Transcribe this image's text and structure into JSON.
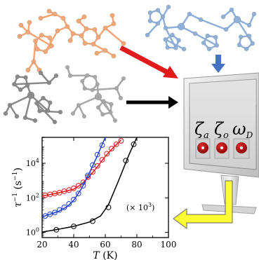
{
  "monitor": {
    "labels": [
      {
        "text": "ζ",
        "sub": "a"
      },
      {
        "text": "ζ",
        "sub": "o"
      },
      {
        "text": "ω",
        "sub": "D"
      }
    ]
  },
  "molecules": [
    {
      "name": "orange-complex",
      "color": "#f0a878"
    },
    {
      "name": "blue-complex",
      "color": "#8fb0d8"
    },
    {
      "name": "gray-complex-1",
      "color": "#8a8a8a"
    },
    {
      "name": "gray-complex-2",
      "color": "#a8a8a8"
    }
  ],
  "arrows": {
    "red": "#e31a1c",
    "blue": "#4472c4",
    "black": "#000000",
    "yellow": "#ffff33"
  },
  "chart_data": {
    "type": "line",
    "xlabel_var": "T",
    "xlabel_unit": "(K)",
    "ylabel_var": "τ",
    "ylabel_sup": "−1",
    "ylabel_unit": "(s",
    "ylabel_unit_sup": "−1",
    "ylabel_close": ")",
    "x_ticks": [
      "20",
      "40",
      "60",
      "80",
      "100"
    ],
    "x_tick_values": [
      20,
      40,
      60,
      80,
      100
    ],
    "y_ticks": [
      {
        "base": "10",
        "exp": "0",
        "value": 0
      },
      {
        "base": "10",
        "exp": "2",
        "value": 2
      },
      {
        "base": "10",
        "exp": "4",
        "value": 4
      }
    ],
    "xlim": [
      20,
      100
    ],
    "ylim_log10": [
      -0.3,
      5.5
    ],
    "annotation": {
      "text": "(× 10",
      "sup": "3",
      "close": ")"
    },
    "series": [
      {
        "color": "#e31a1c",
        "points": [
          [
            22,
            2.15
          ],
          [
            25,
            2.2
          ],
          [
            28,
            2.25
          ],
          [
            31,
            2.3
          ],
          [
            34,
            2.38
          ],
          [
            37,
            2.45
          ],
          [
            40,
            2.55
          ],
          [
            43,
            2.7
          ],
          [
            46,
            2.9
          ],
          [
            49,
            3.2
          ],
          [
            52,
            3.5
          ],
          [
            55,
            3.85
          ],
          [
            58,
            4.2
          ],
          [
            61,
            4.55
          ],
          [
            64,
            4.85
          ],
          [
            67,
            5.1
          ],
          [
            70,
            5.3
          ]
        ],
        "fit": [
          [
            20,
            2.1
          ],
          [
            30,
            2.28
          ],
          [
            40,
            2.5
          ],
          [
            45,
            2.8
          ],
          [
            50,
            3.25
          ],
          [
            55,
            3.8
          ],
          [
            60,
            4.4
          ],
          [
            65,
            4.9
          ],
          [
            70,
            5.35
          ]
        ]
      },
      {
        "color": "#1f3fd1",
        "points": [
          [
            22,
            0.95
          ],
          [
            25,
            1.05
          ],
          [
            28,
            1.15
          ],
          [
            31,
            1.3
          ],
          [
            34,
            1.45
          ],
          [
            37,
            1.65
          ],
          [
            40,
            1.9
          ],
          [
            43,
            2.25
          ],
          [
            46,
            2.7
          ],
          [
            49,
            3.3
          ],
          [
            52,
            3.9
          ],
          [
            55,
            4.5
          ],
          [
            58,
            5.05
          ]
        ],
        "fit": [
          [
            20,
            0.9
          ],
          [
            30,
            1.2
          ],
          [
            36,
            1.5
          ],
          [
            40,
            1.85
          ],
          [
            45,
            2.55
          ],
          [
            50,
            3.45
          ],
          [
            55,
            4.45
          ],
          [
            60,
            5.5
          ]
        ]
      },
      {
        "color": "#000000",
        "points": [
          [
            29,
            0.15
          ],
          [
            40,
            0.35
          ],
          [
            52,
            0.65
          ],
          [
            62,
            1.45
          ],
          [
            73,
            4.15
          ],
          [
            78,
            5.1
          ]
        ],
        "fit": [
          [
            20,
            0.02
          ],
          [
            30,
            0.18
          ],
          [
            40,
            0.35
          ],
          [
            50,
            0.6
          ],
          [
            57,
            0.95
          ],
          [
            62,
            1.6
          ],
          [
            68,
            2.9
          ],
          [
            75,
            4.5
          ],
          [
            80,
            5.5
          ]
        ]
      }
    ]
  }
}
